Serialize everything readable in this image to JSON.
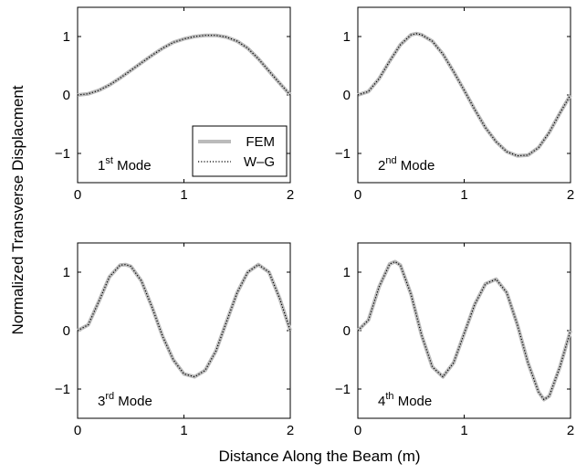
{
  "chart_data": {
    "type": "line",
    "xlabel": "Distance Along the Beam (m)",
    "ylabel": "Normalized Transverse Displacment",
    "xlim": [
      0,
      2
    ],
    "ylim": [
      -1.5,
      1.5
    ],
    "xticks": [
      0,
      1,
      2
    ],
    "yticks": [
      -1,
      0,
      1
    ],
    "grid": false,
    "legend": {
      "placement": "bottom-right of 1st subplot",
      "entries": [
        {
          "name": "FEM",
          "color": "#bbbbbb",
          "style": "solid"
        },
        {
          "name": "W–G",
          "color": "#000000",
          "style": "dotted"
        }
      ]
    },
    "subplots": [
      {
        "label_num": "1",
        "label_sup": "st",
        "label_word": "Mode",
        "x": [
          0,
          0.1,
          0.2,
          0.3,
          0.4,
          0.5,
          0.6,
          0.7,
          0.8,
          0.9,
          1.0,
          1.1,
          1.2,
          1.25,
          1.3,
          1.4,
          1.5,
          1.6,
          1.7,
          1.8,
          1.9,
          2.0
        ],
        "series": [
          {
            "name": "FEM",
            "values": [
              0,
              0.02,
              0.08,
              0.17,
              0.29,
              0.42,
              0.55,
              0.68,
              0.8,
              0.9,
              0.96,
              1.0,
              1.02,
              1.02,
              1.02,
              0.99,
              0.92,
              0.8,
              0.62,
              0.41,
              0.2,
              0.0
            ]
          },
          {
            "name": "W–G",
            "values": [
              0,
              0.02,
              0.08,
              0.17,
              0.29,
              0.42,
              0.55,
              0.68,
              0.8,
              0.9,
              0.96,
              1.0,
              1.02,
              1.02,
              1.02,
              0.99,
              0.92,
              0.8,
              0.62,
              0.41,
              0.2,
              0.0
            ]
          }
        ]
      },
      {
        "label_num": "2",
        "label_sup": "nd",
        "label_word": "Mode",
        "x": [
          0,
          0.1,
          0.2,
          0.3,
          0.4,
          0.5,
          0.55,
          0.6,
          0.7,
          0.8,
          0.9,
          1.0,
          1.1,
          1.2,
          1.3,
          1.4,
          1.5,
          1.6,
          1.7,
          1.8,
          1.9,
          2.0
        ],
        "series": [
          {
            "name": "FEM",
            "values": [
              0,
              0.06,
              0.28,
              0.58,
              0.86,
              1.03,
              1.05,
              1.03,
              0.92,
              0.7,
              0.4,
              0.08,
              -0.25,
              -0.56,
              -0.8,
              -0.97,
              -1.04,
              -1.03,
              -0.9,
              -0.64,
              -0.31,
              0.0
            ]
          },
          {
            "name": "W–G",
            "values": [
              0,
              0.06,
              0.28,
              0.58,
              0.86,
              1.03,
              1.05,
              1.03,
              0.92,
              0.7,
              0.4,
              0.08,
              -0.25,
              -0.56,
              -0.8,
              -0.97,
              -1.04,
              -1.03,
              -0.9,
              -0.64,
              -0.31,
              0.0
            ]
          }
        ]
      },
      {
        "label_num": "3",
        "label_sup": "rd",
        "label_word": "Mode",
        "x": [
          0,
          0.1,
          0.2,
          0.3,
          0.4,
          0.45,
          0.5,
          0.6,
          0.7,
          0.8,
          0.9,
          1.0,
          1.1,
          1.2,
          1.3,
          1.4,
          1.5,
          1.6,
          1.7,
          1.8,
          1.9,
          2.0
        ],
        "series": [
          {
            "name": "FEM",
            "values": [
              0,
              0.1,
              0.5,
              0.92,
              1.12,
              1.13,
              1.1,
              0.85,
              0.4,
              -0.1,
              -0.5,
              -0.74,
              -0.79,
              -0.68,
              -0.35,
              0.15,
              0.65,
              1.0,
              1.13,
              1.0,
              0.55,
              0.0
            ]
          },
          {
            "name": "W–G",
            "values": [
              0,
              0.1,
              0.5,
              0.92,
              1.12,
              1.13,
              1.1,
              0.85,
              0.4,
              -0.1,
              -0.5,
              -0.74,
              -0.79,
              -0.68,
              -0.35,
              0.15,
              0.65,
              1.0,
              1.13,
              1.0,
              0.55,
              0.0
            ]
          }
        ]
      },
      {
        "label_num": "4",
        "label_sup": "th",
        "label_word": "Mode",
        "x": [
          0,
          0.1,
          0.2,
          0.3,
          0.35,
          0.4,
          0.5,
          0.6,
          0.7,
          0.8,
          0.9,
          1.0,
          1.1,
          1.2,
          1.3,
          1.4,
          1.5,
          1.6,
          1.7,
          1.75,
          1.8,
          1.9,
          2.0
        ],
        "series": [
          {
            "name": "FEM",
            "values": [
              0,
              0.18,
              0.75,
              1.14,
              1.18,
              1.12,
              0.62,
              -0.08,
              -0.62,
              -0.79,
              -0.55,
              -0.05,
              0.45,
              0.8,
              0.88,
              0.65,
              0.1,
              -0.55,
              -1.05,
              -1.18,
              -1.12,
              -0.62,
              0.0
            ]
          },
          {
            "name": "W–G",
            "values": [
              0,
              0.18,
              0.75,
              1.14,
              1.18,
              1.12,
              0.62,
              -0.08,
              -0.62,
              -0.79,
              -0.55,
              -0.05,
              0.45,
              0.8,
              0.88,
              0.65,
              0.1,
              -0.55,
              -1.05,
              -1.18,
              -1.12,
              -0.62,
              0.0
            ]
          }
        ]
      }
    ]
  }
}
